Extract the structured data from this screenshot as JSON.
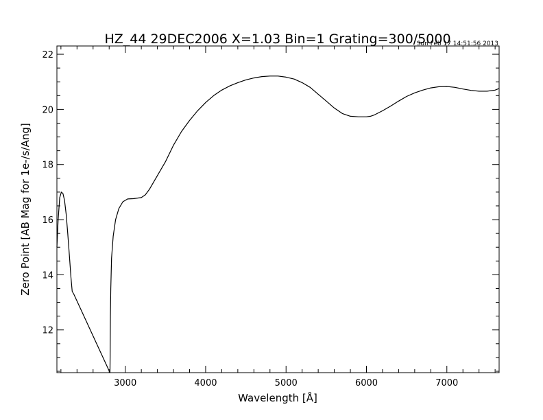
{
  "chart_data": {
    "type": "line",
    "title": "HZ_44 29DEC2006 X=1.03 Bin=1 Grating=300/5000",
    "timestamp": "Sun Feb 17 14:51:56 2013",
    "xlabel": "Wavelength [Å]",
    "ylabel": "Zero Point [AB Mag for 1e-/s/Ang]",
    "xlim": [
      2150,
      7650
    ],
    "ylim": [
      10.45,
      22.3
    ],
    "xticks": [
      3000,
      4000,
      5000,
      6000,
      7000
    ],
    "xtick_labels": [
      "3000",
      "4000",
      "5000",
      "6000",
      "7000"
    ],
    "yticks": [
      12,
      14,
      16,
      18,
      20,
      22
    ],
    "ytick_labels": [
      "12",
      "14",
      "16",
      "18",
      "20",
      "22"
    ],
    "grid": false,
    "series": [
      {
        "color": "#000000",
        "x": [
          2150,
          2165,
          2185,
          2205,
          2225,
          2245,
          2265,
          2285,
          2305,
          2325,
          2340,
          2360,
          2810,
          2812,
          2815,
          2820,
          2830,
          2850,
          2880,
          2920,
          2970,
          3030,
          3100,
          3200,
          3250,
          3300,
          3400,
          3500,
          3600,
          3700,
          3800,
          3900,
          4000,
          4100,
          4200,
          4300,
          4400,
          4500,
          4600,
          4700,
          4800,
          4900,
          5000,
          5100,
          5200,
          5300,
          5400,
          5500,
          5600,
          5700,
          5800,
          5900,
          6000,
          6050,
          6100,
          6200,
          6300,
          6400,
          6500,
          6600,
          6700,
          6800,
          6900,
          7000,
          7100,
          7200,
          7300,
          7400,
          7500,
          7600,
          7650
        ],
        "y": [
          15.0,
          16.0,
          16.8,
          17.0,
          16.95,
          16.7,
          16.2,
          15.5,
          14.7,
          13.9,
          13.4,
          13.3,
          10.45,
          11.0,
          12.5,
          13.5,
          14.6,
          15.4,
          16.0,
          16.4,
          16.65,
          16.75,
          16.76,
          16.8,
          16.9,
          17.1,
          17.6,
          18.1,
          18.7,
          19.2,
          19.6,
          19.95,
          20.25,
          20.5,
          20.7,
          20.85,
          20.97,
          21.07,
          21.14,
          21.19,
          21.21,
          21.21,
          21.17,
          21.1,
          20.97,
          20.8,
          20.55,
          20.3,
          20.05,
          19.85,
          19.75,
          19.73,
          19.73,
          19.75,
          19.8,
          19.95,
          20.12,
          20.3,
          20.47,
          20.6,
          20.7,
          20.78,
          20.82,
          20.83,
          20.8,
          20.74,
          20.69,
          20.66,
          20.66,
          20.7,
          20.76
        ]
      }
    ]
  }
}
